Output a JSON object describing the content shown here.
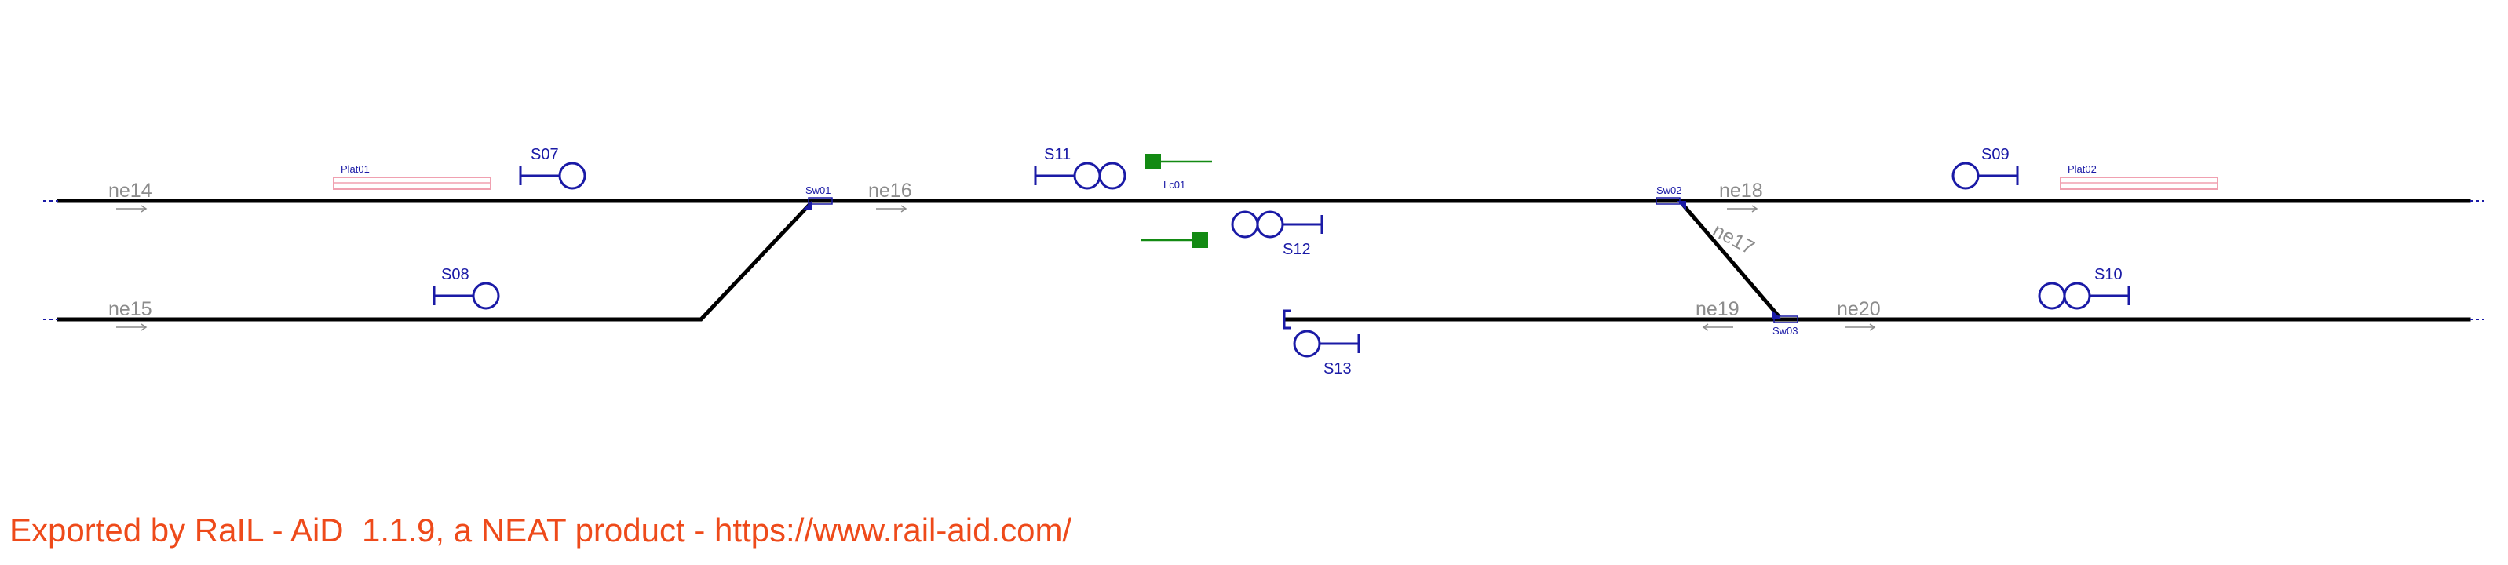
{
  "colors": {
    "track": "#000000",
    "signal": "#1a1aa6",
    "element_label": "#8c8c8c",
    "platform": "#f0a0b0",
    "level_crossing": "#138a13",
    "footer": "#ee4a1a"
  },
  "netelements": [
    "ne14",
    "ne15",
    "ne16",
    "ne17",
    "ne18",
    "ne19",
    "ne20"
  ],
  "signals": [
    "S07",
    "S08",
    "S09",
    "S10",
    "S11",
    "S12",
    "S13"
  ],
  "switches": [
    "Sw01",
    "Sw02",
    "Sw03"
  ],
  "platforms": [
    "Plat01",
    "Plat02"
  ],
  "level_crossings": [
    "Lc01"
  ],
  "footer": "Exported by RaIL - AiD  1.1.9, a NEAT product - https://www.rail-aid.com/"
}
